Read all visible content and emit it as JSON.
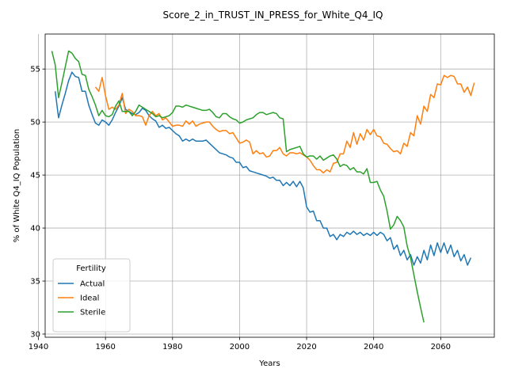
{
  "chart_data": {
    "type": "line",
    "title": "Score_2_in_TRUST_IN_PRESS_for_White_Q4_IQ",
    "xlabel": "Years",
    "ylabel": "% of White Q4_IQ Population",
    "xlim": [
      1942,
      2076
    ],
    "ylim": [
      29.7,
      58.3
    ],
    "xticks": [
      1940,
      1960,
      1980,
      2000,
      2020,
      2040,
      2060
    ],
    "yticks": [
      30,
      35,
      40,
      45,
      50,
      55
    ],
    "grid": true,
    "legend": {
      "title": "Fertility",
      "placement": "lower-left"
    },
    "colors": {
      "Actual": "#1f77b4",
      "Ideal": "#ff7f0e",
      "Sterile": "#2ca02c"
    },
    "series": [
      {
        "name": "Actual",
        "x": [
          1945,
          1946,
          1947,
          1948,
          1949,
          1950,
          1951,
          1952,
          1953,
          1954,
          1955,
          1956,
          1957,
          1958,
          1959,
          1960,
          1961,
          1962,
          1963,
          1964,
          1965,
          1966,
          1967,
          1968,
          1969,
          1970,
          1971,
          1972,
          1973,
          1974,
          1975,
          1976,
          1977,
          1978,
          1979,
          1980,
          1981,
          1982,
          1983,
          1984,
          1985,
          1986,
          1987,
          1988,
          1989,
          1990,
          1991,
          1992,
          1993,
          1994,
          1995,
          1996,
          1997,
          1998,
          1999,
          2000,
          2001,
          2002,
          2003,
          2004,
          2005,
          2006,
          2007,
          2008,
          2009,
          2010,
          2011,
          2012,
          2013,
          2014,
          2015,
          2016,
          2017,
          2018,
          2019,
          2020,
          2021,
          2022,
          2023,
          2024,
          2025,
          2026,
          2027,
          2028,
          2029,
          2030,
          2031,
          2032,
          2033,
          2034,
          2035,
          2036,
          2037,
          2038,
          2039,
          2040,
          2041,
          2042,
          2043,
          2044,
          2045,
          2046,
          2047,
          2048,
          2049,
          2050,
          2051,
          2052,
          2053,
          2054,
          2055,
          2056,
          2057,
          2058,
          2059,
          2060,
          2061,
          2062,
          2063,
          2064,
          2065,
          2066,
          2067,
          2068,
          2069,
          2070
        ],
        "values": [
          52.9,
          50.4,
          51.6,
          52.7,
          53.9,
          54.7,
          54.3,
          54.2,
          52.9,
          52.9,
          51.6,
          50.7,
          49.9,
          49.7,
          50.2,
          50.0,
          49.7,
          50.2,
          50.9,
          51.5,
          52.3,
          51.2,
          51.0,
          50.8,
          50.7,
          50.9,
          51.3,
          51.1,
          50.6,
          50.3,
          50.1,
          49.5,
          49.7,
          49.4,
          49.5,
          49.2,
          48.9,
          48.7,
          48.2,
          48.4,
          48.2,
          48.4,
          48.2,
          48.2,
          48.2,
          48.3,
          48.0,
          47.7,
          47.4,
          47.1,
          47.0,
          46.9,
          46.7,
          46.6,
          46.2,
          46.2,
          45.7,
          45.8,
          45.4,
          45.3,
          45.2,
          45.1,
          45.0,
          44.9,
          44.7,
          44.8,
          44.5,
          44.5,
          44.0,
          44.3,
          44.0,
          44.4,
          43.9,
          44.4,
          43.8,
          42.0,
          41.5,
          41.6,
          40.7,
          40.7,
          40.0,
          40.0,
          39.2,
          39.4,
          38.9,
          39.4,
          39.2,
          39.6,
          39.4,
          39.7,
          39.4,
          39.6,
          39.3,
          39.5,
          39.3,
          39.6,
          39.3,
          39.6,
          39.4,
          38.8,
          39.1,
          38.0,
          38.4,
          37.4,
          37.9,
          37.0,
          37.5,
          36.5,
          37.3,
          36.7,
          37.9,
          37.0,
          38.4,
          37.4,
          38.6,
          37.7,
          38.6,
          37.6,
          38.4,
          37.3,
          37.9,
          36.9,
          37.5,
          36.5,
          37.2,
          null
        ]
      },
      {
        "name": "Ideal",
        "x": [
          1957,
          1958,
          1959,
          1960,
          1961,
          1962,
          1963,
          1964,
          1965,
          1966,
          1967,
          1968,
          1969,
          1970,
          1971,
          1972,
          1973,
          1974,
          1975,
          1976,
          1977,
          1978,
          1979,
          1980,
          1981,
          1982,
          1983,
          1984,
          1985,
          1986,
          1987,
          1988,
          1989,
          1990,
          1991,
          1992,
          1993,
          1994,
          1995,
          1996,
          1997,
          1998,
          1999,
          2000,
          2001,
          2002,
          2003,
          2004,
          2005,
          2006,
          2007,
          2008,
          2009,
          2010,
          2011,
          2012,
          2013,
          2014,
          2015,
          2016,
          2017,
          2018,
          2019,
          2020,
          2021,
          2022,
          2023,
          2024,
          2025,
          2026,
          2027,
          2028,
          2029,
          2030,
          2031,
          2032,
          2033,
          2034,
          2035,
          2036,
          2037,
          2038,
          2039,
          2040,
          2041,
          2042,
          2043,
          2044,
          2045,
          2046,
          2047,
          2048,
          2049,
          2050,
          2051,
          2052,
          2053,
          2054,
          2055,
          2056,
          2057,
          2058,
          2059,
          2060,
          2061,
          2062,
          2063,
          2064,
          2065,
          2066,
          2067,
          2068,
          2069,
          2070
        ],
        "values": [
          53.3,
          52.9,
          54.2,
          52.5,
          51.2,
          51.4,
          51.2,
          51.6,
          52.7,
          50.8,
          51.2,
          51.0,
          50.6,
          50.6,
          50.5,
          49.7,
          50.6,
          51.0,
          50.6,
          50.8,
          50.2,
          50.4,
          50.0,
          49.6,
          49.7,
          49.7,
          49.6,
          50.1,
          49.8,
          50.1,
          49.6,
          49.8,
          49.9,
          50.0,
          50.0,
          49.6,
          49.3,
          49.1,
          49.2,
          49.2,
          48.9,
          49.0,
          48.5,
          48.0,
          48.1,
          48.3,
          48.1,
          47.0,
          47.3,
          47.0,
          47.1,
          46.7,
          46.8,
          47.3,
          47.3,
          47.6,
          47.0,
          46.8,
          47.1,
          47.1,
          47.0,
          47.1,
          46.9,
          46.7,
          46.4,
          45.9,
          45.5,
          45.5,
          45.2,
          45.5,
          45.3,
          46.1,
          46.2,
          47.0,
          47.0,
          48.2,
          47.6,
          49.0,
          47.9,
          48.9,
          48.3,
          49.3,
          48.8,
          49.3,
          48.7,
          48.6,
          48.0,
          47.9,
          47.5,
          47.2,
          47.3,
          47.0,
          48.0,
          47.7,
          49.0,
          48.7,
          50.6,
          49.8,
          51.5,
          51.0,
          52.6,
          52.3,
          53.6,
          53.5,
          54.4,
          54.2,
          54.4,
          54.3,
          53.6,
          53.6,
          52.8,
          53.3,
          52.5,
          53.7
        ]
      },
      {
        "name": "Sterile",
        "x": [
          1944,
          1945,
          1946,
          1947,
          1948,
          1949,
          1950,
          1951,
          1952,
          1953,
          1954,
          1955,
          1956,
          1957,
          1958,
          1959,
          1960,
          1961,
          1962,
          1963,
          1964,
          1965,
          1966,
          1967,
          1968,
          1969,
          1970,
          1971,
          1972,
          1973,
          1974,
          1975,
          1976,
          1977,
          1978,
          1979,
          1980,
          1981,
          1982,
          1983,
          1984,
          1985,
          1986,
          1987,
          1988,
          1989,
          1990,
          1991,
          1992,
          1993,
          1994,
          1995,
          1996,
          1997,
          1998,
          1999,
          2000,
          2001,
          2002,
          2003,
          2004,
          2005,
          2006,
          2007,
          2008,
          2009,
          2010,
          2011,
          2012,
          2013,
          2014,
          2015,
          2016,
          2017,
          2018,
          2019,
          2020,
          2021,
          2022,
          2023,
          2024,
          2025,
          2026,
          2027,
          2028,
          2029,
          2030,
          2031,
          2032,
          2033,
          2034,
          2035,
          2036,
          2037,
          2038,
          2039,
          2040,
          2041,
          2042,
          2043,
          2044,
          2045,
          2046,
          2047,
          2048,
          2049,
          2050,
          2051,
          2052,
          2053,
          2054,
          2055
        ],
        "values": [
          56.7,
          55.4,
          52.3,
          53.7,
          55.2,
          56.7,
          56.5,
          56.0,
          55.7,
          54.5,
          54.4,
          53.1,
          52.4,
          51.6,
          50.6,
          51.1,
          50.6,
          50.5,
          50.7,
          51.5,
          52.0,
          51.0,
          51.0,
          51.0,
          50.6,
          51.0,
          51.6,
          51.4,
          51.2,
          51.0,
          50.8,
          50.5,
          50.6,
          50.4,
          50.5,
          50.6,
          50.9,
          51.5,
          51.5,
          51.4,
          51.6,
          51.5,
          51.4,
          51.3,
          51.2,
          51.1,
          51.1,
          51.2,
          50.9,
          50.5,
          50.4,
          50.8,
          50.8,
          50.5,
          50.3,
          50.2,
          49.9,
          50.0,
          50.2,
          50.3,
          50.4,
          50.7,
          50.9,
          50.9,
          50.7,
          50.8,
          50.9,
          50.8,
          50.4,
          50.3,
          47.2,
          47.4,
          47.5,
          47.6,
          47.7,
          47.0,
          46.7,
          46.8,
          46.8,
          46.5,
          46.8,
          46.4,
          46.6,
          46.8,
          46.9,
          46.5,
          45.8,
          46.0,
          45.9,
          45.5,
          45.7,
          45.3,
          45.3,
          45.1,
          45.6,
          44.3,
          44.3,
          44.4,
          43.6,
          43.0,
          41.6,
          39.9,
          40.3,
          41.1,
          40.7,
          40.1,
          38.3,
          37.2,
          35.6,
          34.0,
          32.5,
          31.1
        ]
      }
    ]
  }
}
